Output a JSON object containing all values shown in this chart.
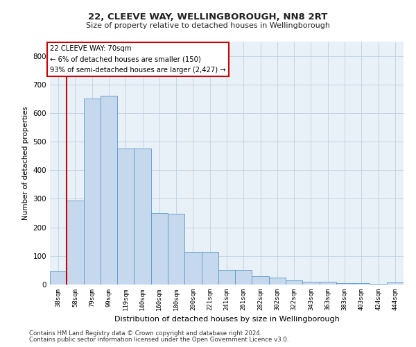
{
  "title1": "22, CLEEVE WAY, WELLINGBOROUGH, NN8 2RT",
  "title2": "Size of property relative to detached houses in Wellingborough",
  "xlabel": "Distribution of detached houses by size in Wellingborough",
  "ylabel": "Number of detached properties",
  "categories": [
    "38sqm",
    "58sqm",
    "79sqm",
    "99sqm",
    "119sqm",
    "140sqm",
    "160sqm",
    "180sqm",
    "200sqm",
    "221sqm",
    "241sqm",
    "261sqm",
    "282sqm",
    "302sqm",
    "322sqm",
    "343sqm",
    "363sqm",
    "383sqm",
    "403sqm",
    "424sqm",
    "444sqm"
  ],
  "values": [
    47,
    295,
    650,
    660,
    475,
    475,
    250,
    248,
    115,
    115,
    52,
    52,
    28,
    25,
    15,
    10,
    10,
    5,
    5,
    3,
    8
  ],
  "bar_color": "#c5d8ed",
  "bar_edge_color": "#5b9bc8",
  "vline_x": 0.5,
  "vline_color": "#cc0000",
  "ylim": [
    0,
    850
  ],
  "yticks": [
    0,
    100,
    200,
    300,
    400,
    500,
    600,
    700,
    800
  ],
  "annotation_title": "22 CLEEVE WAY: 70sqm",
  "annotation_line1": "← 6% of detached houses are smaller (150)",
  "annotation_line2": "93% of semi-detached houses are larger (2,427) →",
  "annotation_box_color": "#ffffff",
  "annotation_box_edge": "#cc0000",
  "footer1": "Contains HM Land Registry data © Crown copyright and database right 2024.",
  "footer2": "Contains public sector information licensed under the Open Government Licence v3.0.",
  "bg_color": "#ffffff",
  "plot_bg_color": "#e8f0f8",
  "grid_color": "#c0d0e0"
}
